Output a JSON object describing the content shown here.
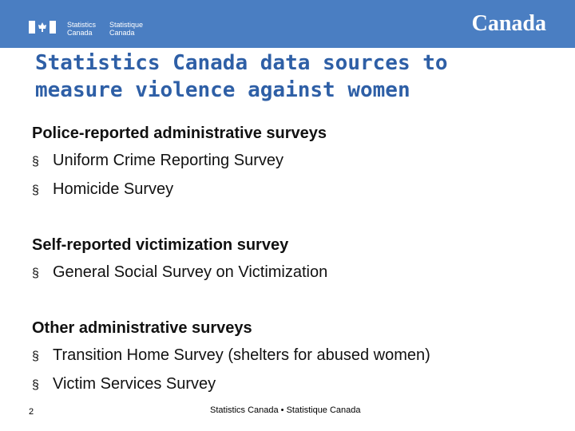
{
  "header": {
    "brand_en_1": "Statistics",
    "brand_en_2": "Canada",
    "brand_fr_1": "Statistique",
    "brand_fr_2": "Canada",
    "wordmark": "Canada"
  },
  "title": "Statistics Canada data sources to measure violence against women",
  "sections": [
    {
      "heading": "Police-reported administrative surveys",
      "items": [
        "Uniform Crime Reporting Survey",
        "Homicide Survey"
      ]
    },
    {
      "heading": "Self-reported victimization survey",
      "items": [
        "General Social Survey on Victimization"
      ]
    },
    {
      "heading": "Other administrative surveys",
      "items": [
        "Transition Home Survey (shelters for abused women)",
        "Victim Services Survey"
      ]
    }
  ],
  "bullet": "§",
  "footer": {
    "page": "2",
    "center": "Statistics Canada • Statistique Canada"
  }
}
